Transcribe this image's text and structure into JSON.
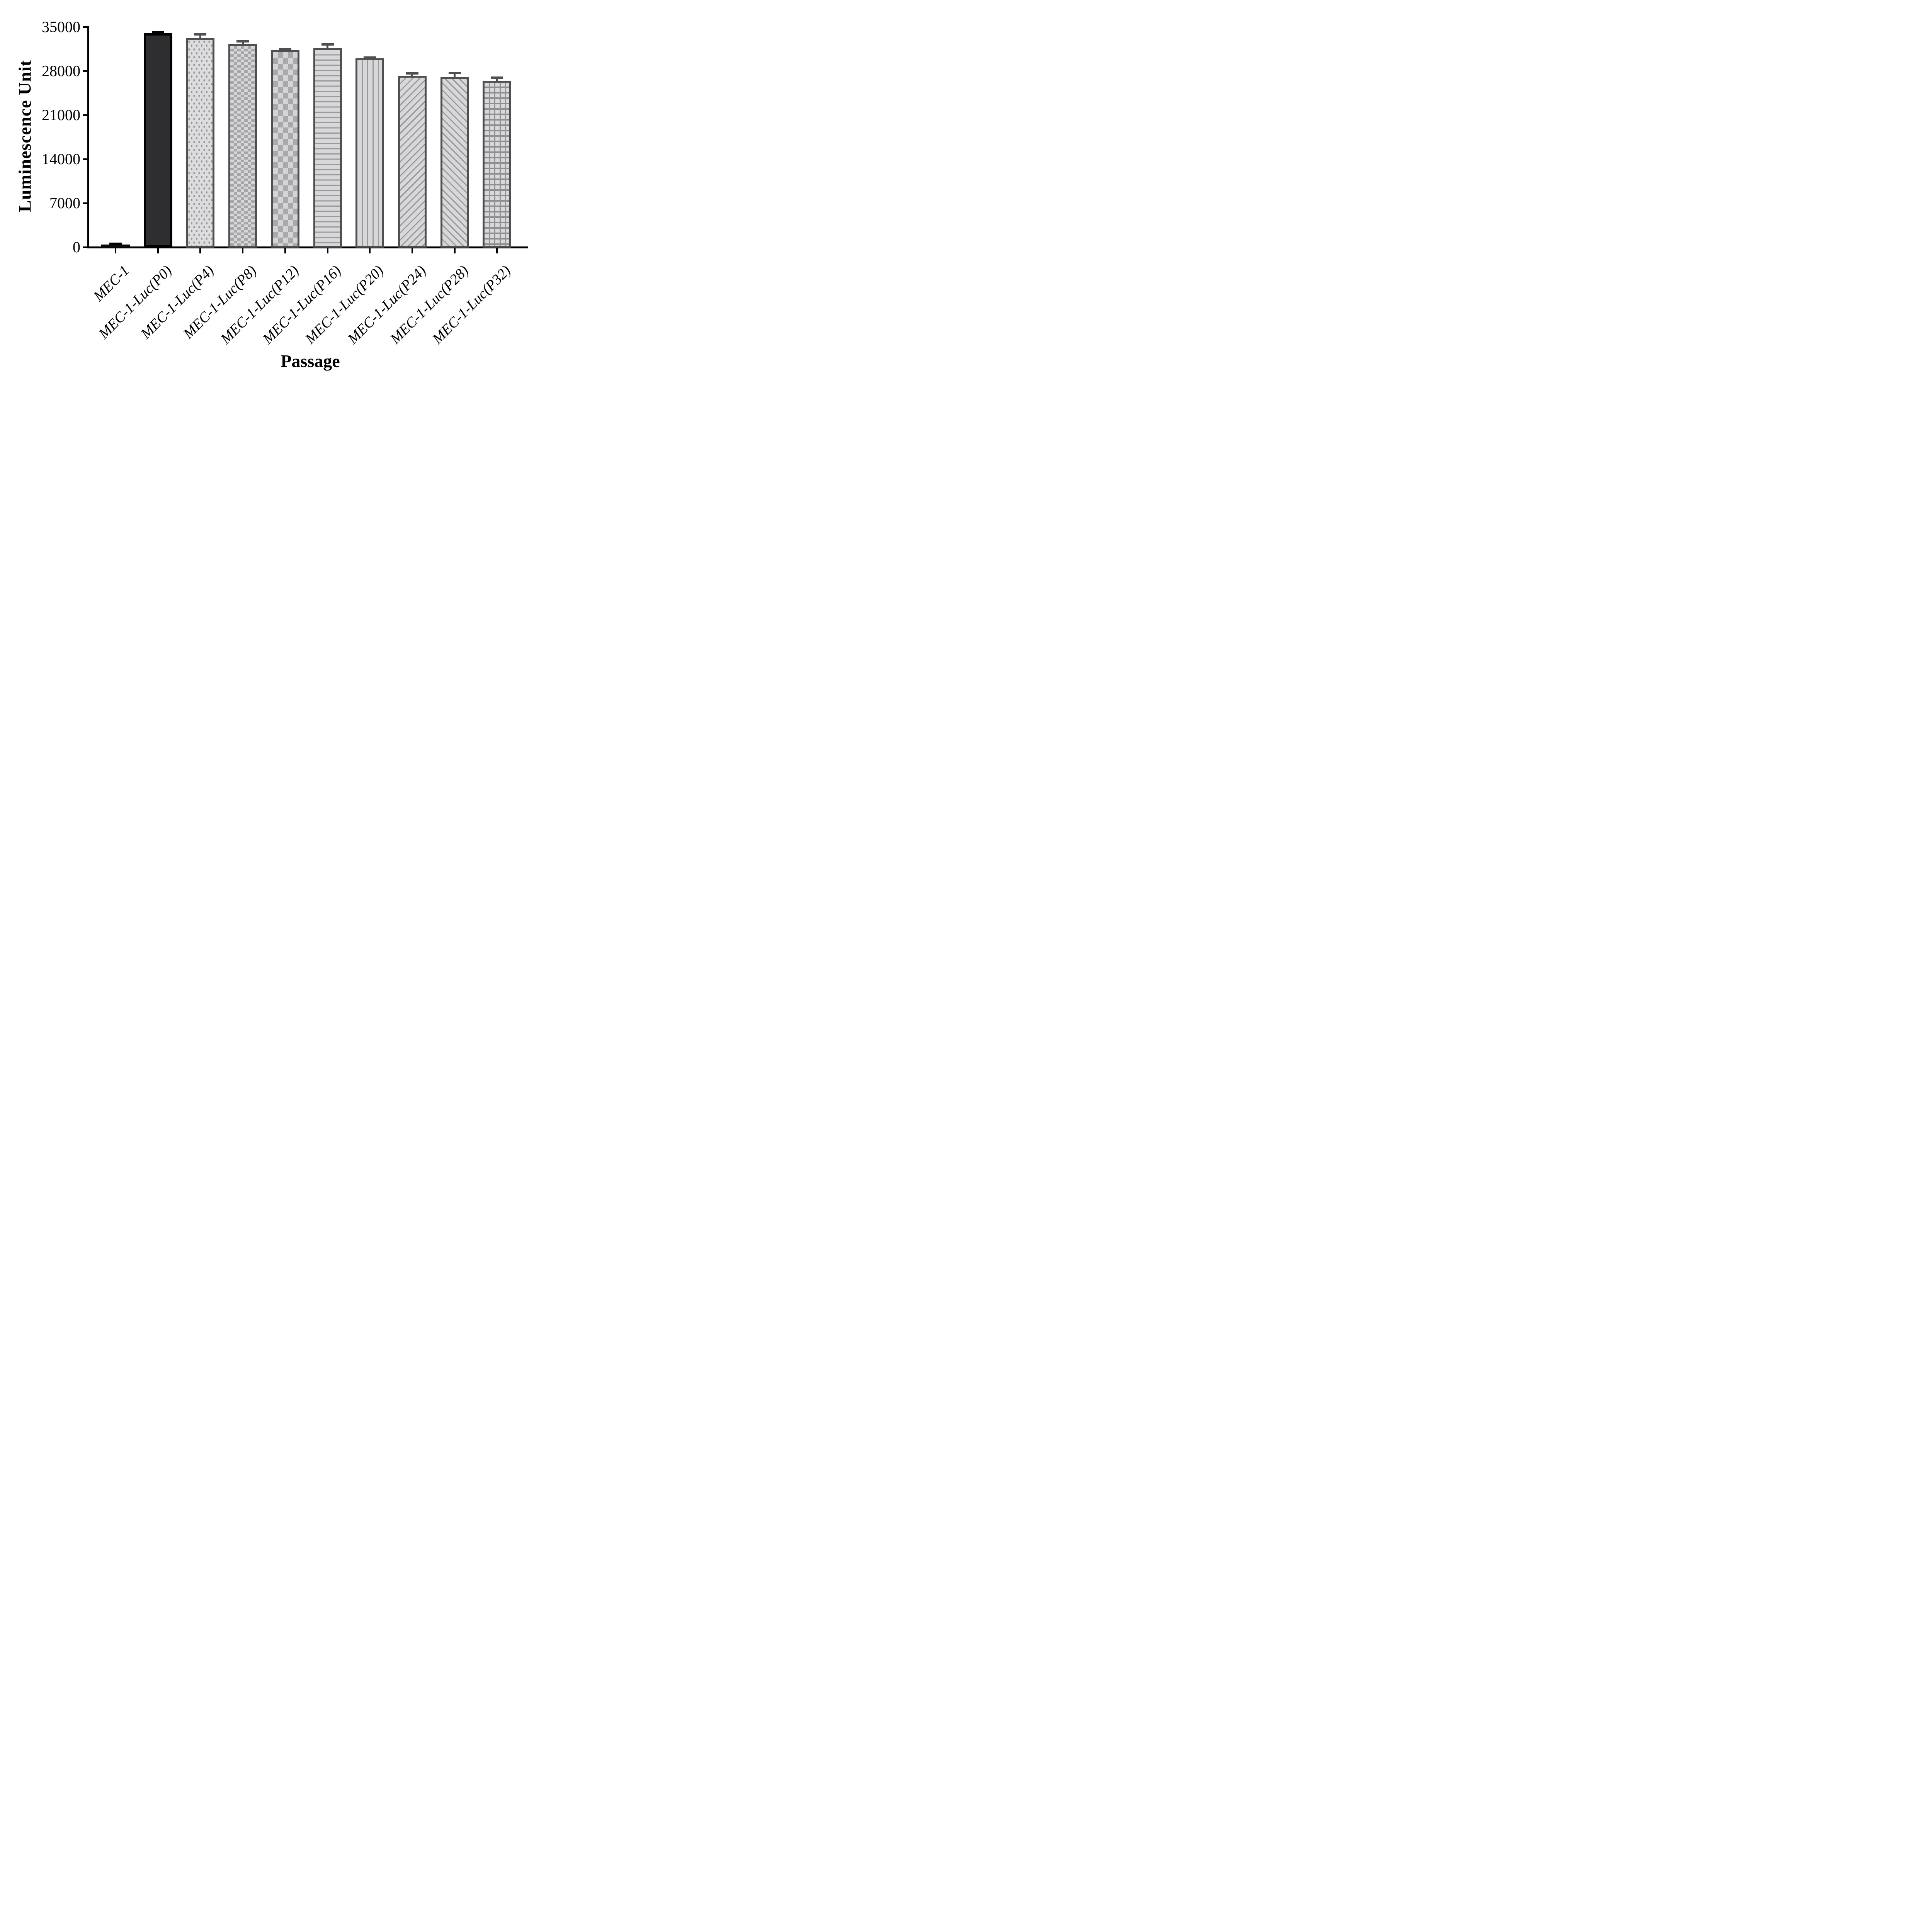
{
  "chart_data": {
    "type": "bar",
    "title": "",
    "xlabel": "Passage",
    "ylabel": "Luminescence Unit",
    "categories": [
      "MEC-1",
      "MEC-1-Luc(P0)",
      "MEC-1-Luc(P4)",
      "MEC-1-Luc(P8)",
      "MEC-1-Luc(P12)",
      "MEC-1-Luc(P16)",
      "MEC-1-Luc(P20)",
      "MEC-1-Luc(P24)",
      "MEC-1-Luc(P28)",
      "MEC-1-Luc(P32)"
    ],
    "values": [
      400,
      34000,
      33300,
      32300,
      31300,
      31600,
      30000,
      27250,
      27000,
      26450
    ],
    "errors_upper": [
      350,
      400,
      700,
      600,
      350,
      850,
      350,
      550,
      900,
      700
    ],
    "ylim": [
      0,
      35000
    ],
    "yticks": [
      0,
      7000,
      14000,
      21000,
      28000,
      35000
    ],
    "grid": false,
    "legend": null,
    "bar_patterns": [
      "solid-black",
      "solid-dark",
      "dots",
      "checker-fine",
      "checker-large",
      "hlines",
      "vlines",
      "diag-up",
      "diag-down",
      "grid"
    ],
    "colors": {
      "axis": "#000000",
      "bar_border_gray": "#4f4f52",
      "pattern_gray": "#9a9a9e",
      "fill_light": "#d8d8da",
      "p0_fill": "#2e2e30",
      "error_bar_dark": "#000000",
      "error_bar_gray": "#4f4f52"
    }
  }
}
